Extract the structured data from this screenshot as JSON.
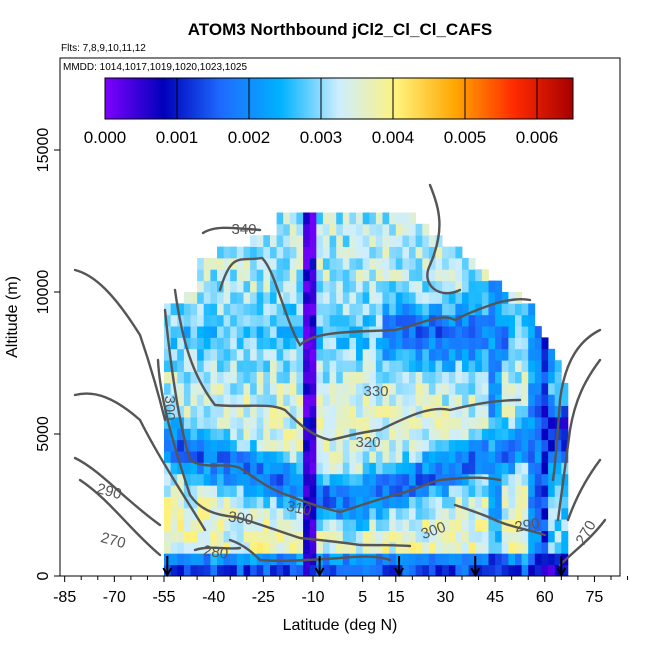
{
  "chart_data": {
    "type": "heatmap",
    "title": "ATOM3 Northbound jCl2_Cl_Cl_CAFS",
    "subtitle_flights": "Flts: 7,8,9,10,11,12",
    "subtitle_dates": "MMDD: 1014,1017,1019,1020,1023,1025",
    "xlabel": "Latitude (deg N)",
    "ylabel": "Altitude (m)",
    "xlim": [
      -85,
      85
    ],
    "ylim": [
      0,
      17500
    ],
    "x_ticks": [
      -85,
      -70,
      -55,
      -40,
      -25,
      -10,
      5,
      15,
      30,
      45,
      60,
      75
    ],
    "x_tick_labels": [
      "-85",
      "-70",
      "-55",
      "-40",
      "-25",
      "-10",
      "5",
      "15",
      "30",
      "45",
      "60",
      "75"
    ],
    "y_ticks": [
      0,
      5000,
      10000,
      15000
    ],
    "y_tick_labels": [
      "0",
      "5000",
      "10000",
      "15000"
    ],
    "colorbar": {
      "min": 0,
      "max": 0.0065,
      "ticks": [
        0,
        0.001,
        0.002,
        0.003,
        0.004,
        0.005,
        0.006
      ],
      "tick_labels": [
        "0.000",
        "0.001",
        "0.002",
        "0.003",
        "0.004",
        "0.005",
        "0.006"
      ],
      "colors": [
        "#7f00ff",
        "#0000bb",
        "#1e6cff",
        "#00b2ff",
        "#cdeeff",
        "#fff27a",
        "#ffa500",
        "#ff2a00",
        "#a60000"
      ],
      "placement": "top"
    },
    "theta_contour_labels": [
      "340",
      "330",
      "320",
      "310",
      "300",
      "300",
      "290",
      "280",
      "270",
      "290",
      "270",
      "300"
    ],
    "contour_color": "#555555",
    "profile_arrow_latitudes": [
      -54,
      -8,
      16,
      39,
      65
    ],
    "column_anomalies": [
      {
        "lat": -11,
        "value": 0.0002
      },
      {
        "lat": 45,
        "value": 0.0022
      },
      {
        "lat": 58,
        "value": 0.0018
      }
    ],
    "value_model": {
      "clear_sky_peak": 0.0041,
      "cloud_minimum": 0.001,
      "surface_value": 0.0011
    }
  }
}
